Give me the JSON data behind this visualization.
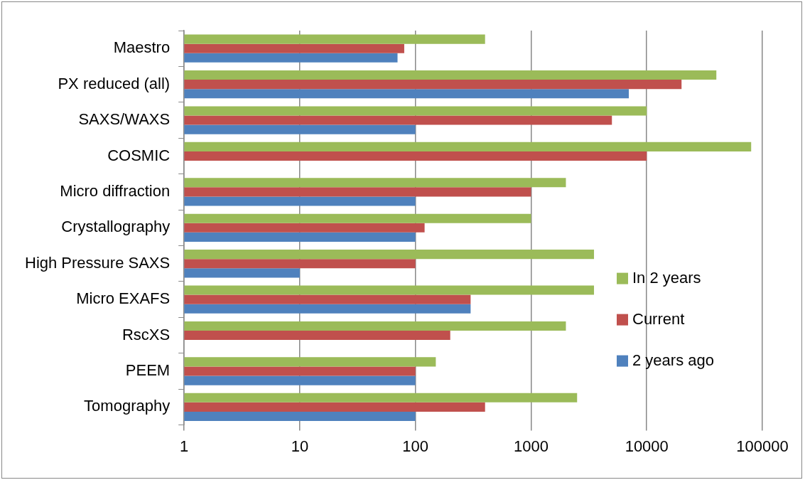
{
  "chart_data": {
    "type": "bar",
    "orientation": "horizontal",
    "categories": [
      "Maestro",
      "PX reduced (all)",
      "SAXS/WAXS",
      "COSMIC",
      "Micro diffraction",
      "Crystallography",
      "High Pressure SAXS",
      "Micro EXAFS",
      "RscXS",
      "PEEM",
      "Tomography"
    ],
    "series": [
      {
        "name": "In 2 years",
        "color": "#9bbb59",
        "values": [
          400,
          40000,
          10000,
          80000,
          2000,
          1000,
          3500,
          3500,
          2000,
          150,
          2500
        ]
      },
      {
        "name": "Current",
        "color": "#c0504d",
        "values": [
          80,
          20000,
          5000,
          10000,
          1000,
          120,
          100,
          300,
          200,
          100,
          400
        ]
      },
      {
        "name": "2 years ago",
        "color": "#4f81bd",
        "values": [
          70,
          7000,
          100,
          null,
          100,
          100,
          10,
          300,
          null,
          100,
          100
        ]
      }
    ],
    "log": "x",
    "xlim": [
      1,
      100000
    ],
    "xticks": [
      1,
      10,
      100,
      1000,
      10000,
      100000
    ],
    "grid": "x",
    "legend": "right"
  }
}
